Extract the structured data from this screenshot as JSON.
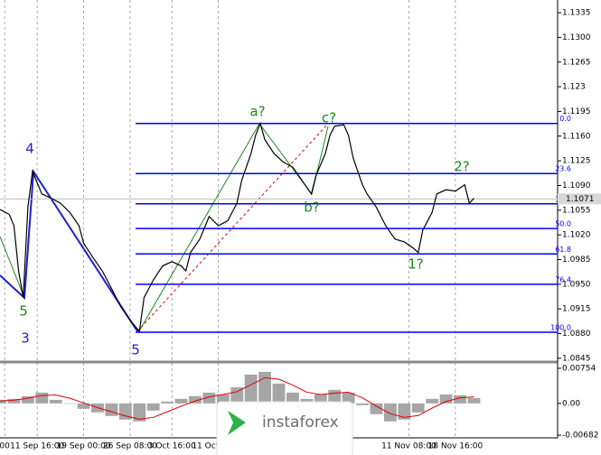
{
  "chart_data": [
    {
      "type": "line",
      "x": [
        0,
        2,
        3,
        4,
        5,
        6,
        7,
        9,
        11,
        13,
        15,
        17,
        18,
        20,
        22,
        24,
        26,
        28,
        30,
        31,
        33,
        35,
        37,
        39,
        40,
        41,
        43,
        45,
        47,
        49,
        51,
        52,
        54,
        55,
        56,
        57,
        59,
        61,
        63,
        65,
        67,
        68,
        70,
        71,
        72,
        74,
        75,
        76,
        78,
        79,
        81,
        83,
        85,
        87,
        89,
        90,
        91,
        93,
        94,
        96,
        98,
        100,
        101,
        102
      ],
      "series": [
        {
          "color": "#000000",
          "values": [
            1.1056,
            1.1049,
            1.1033,
            1.0969,
            1.0931,
            1.1059,
            1.111,
            1.1078,
            1.1072,
            1.1065,
            1.1052,
            1.1033,
            1.1008,
            1.0988,
            1.0969,
            1.0944,
            1.0918,
            1.0899,
            1.0883,
            1.0931,
            1.0956,
            1.0976,
            1.0982,
            1.0976,
            1.0969,
            1.0995,
            1.1014,
            1.1046,
            1.1033,
            1.104,
            1.1065,
            1.1097,
            1.1135,
            1.1161,
            1.1178,
            1.1155,
            1.1135,
            1.1123,
            1.1116,
            1.1097,
            1.1078,
            1.1104,
            1.1135,
            1.1161,
            1.1174,
            1.1176,
            1.1161,
            1.1129,
            1.1091,
            1.1078,
            1.1059,
            1.1033,
            1.1014,
            1.101,
            1.1001,
            1.0995,
            1.1027,
            1.1052,
            1.1078,
            1.1084,
            1.1082,
            1.1091,
            1.1065,
            1.1072
          ]
        }
      ],
      "xlim": [
        0,
        120
      ],
      "ylim": [
        1.0841,
        1.1353
      ],
      "xticks": [
        {
          "value": 1,
          "label": "00"
        },
        {
          "value": 8,
          "label": "11 Sep 16:00"
        },
        {
          "value": 18,
          "label": "19 Sep 00:00"
        },
        {
          "value": 28,
          "label": "26 Sep 08:00"
        },
        {
          "value": 37,
          "label": "3 Oct 16:00"
        },
        {
          "value": 47,
          "label": "11 Oct 00:00"
        },
        {
          "value": 88,
          "label": "11 Nov 08:00"
        },
        {
          "value": 98,
          "label": "18 Nov 16:00"
        }
      ],
      "yticks": [
        1.1335,
        {
          "value": 1.13,
          "label": "1.1300"
        },
        1.1265,
        1.123,
        1.1195,
        {
          "value": 1.116,
          "label": "1.1160"
        },
        1.1125,
        {
          "value": 1.109,
          "label": "1.1090"
        },
        1.1055,
        {
          "value": 1.102,
          "label": "1.1020"
        },
        1.0985,
        {
          "value": 1.095,
          "label": "1.0950"
        },
        1.0915,
        {
          "value": 1.088,
          "label": "1.0880"
        },
        1.0845
      ],
      "last_price": 1.1071,
      "fib_levels": [
        {
          "label": "0.0",
          "value": 1.1178
        },
        {
          "label": "23.6",
          "value": 1.1107
        },
        {
          "label": "38.2",
          "value": 1.1064
        },
        {
          "label": "50.0",
          "value": 1.1029
        },
        {
          "label": "61.8",
          "value": 1.0993
        },
        {
          "label": "76.4",
          "value": 1.095
        },
        {
          "label": "100.0",
          "value": 1.0882
        }
      ],
      "fib_color": "#0000ff",
      "annotations": [
        {
          "text": "4",
          "color": "#1f1fd0"
        },
        {
          "text": "5",
          "color": "#1a8a1a"
        },
        {
          "text": "3",
          "color": "#1f1fd0"
        },
        {
          "text": "5",
          "color": "#1f1fd0"
        },
        {
          "text": "a?",
          "color": "#1a8a1a"
        },
        {
          "text": "c?",
          "color": "#1a8a1a"
        },
        {
          "text": "b?",
          "color": "#1a8a1a"
        },
        {
          "text": "2?",
          "color": "#1a8a1a"
        },
        {
          "text": "1?",
          "color": "#1a8a1a"
        }
      ]
    },
    {
      "type": "oscillator",
      "x": [
        0,
        3,
        6,
        9,
        12,
        15,
        18,
        21,
        24,
        27,
        30,
        33,
        36,
        39,
        42,
        45,
        48,
        51,
        54,
        57,
        60,
        63,
        66,
        69,
        72,
        75,
        78,
        81,
        84,
        87,
        90,
        93,
        96,
        99,
        102
      ],
      "series": [
        {
          "color": "#a6a6a6",
          "values": [
            0.00077,
            0.00097,
            0.00154,
            0.00232,
            0.00077,
            0,
            -0.00116,
            -0.00193,
            -0.0027,
            -0.00347,
            -0.00386,
            -0.00154,
            0.00039,
            0.00097,
            0.00154,
            0.00232,
            0.00193,
            0.00347,
            0.00618,
            0.00676,
            0.00425,
            0.00232,
            0.00097,
            0.00193,
            0.0029,
            0.00232,
            -0.00039,
            -0.00232,
            -0.00386,
            -0.00347,
            -0.00193,
            0.00097,
            0.00193,
            0.00174,
            0.00116
          ]
        },
        {
          "color": "#e00000",
          "values": [
            0.0005,
            0.0007,
            0.0011,
            0.0017,
            0.0018,
            0.0011,
            0.0001,
            -0.0009,
            -0.0018,
            -0.0027,
            -0.0034,
            -0.003,
            -0.0018,
            -0.0006,
            0.0005,
            0.0014,
            0.0019,
            0.0025,
            0.004,
            0.0055,
            0.0052,
            0.0039,
            0.0024,
            0.0019,
            0.0022,
            0.0024,
            0.0012,
            -0.0006,
            -0.0022,
            -0.003,
            -0.0026,
            -0.001,
            0.0004,
            0.0012,
            0.0014
          ]
        }
      ],
      "xlim": [
        0,
        120
      ],
      "ylim": [
        -0.0072,
        0.0083
      ],
      "yticks": [
        0.00754,
        {
          "value": 0,
          "label": "0.00"
        },
        -0.00682
      ]
    }
  ],
  "watermark": "instaforex"
}
